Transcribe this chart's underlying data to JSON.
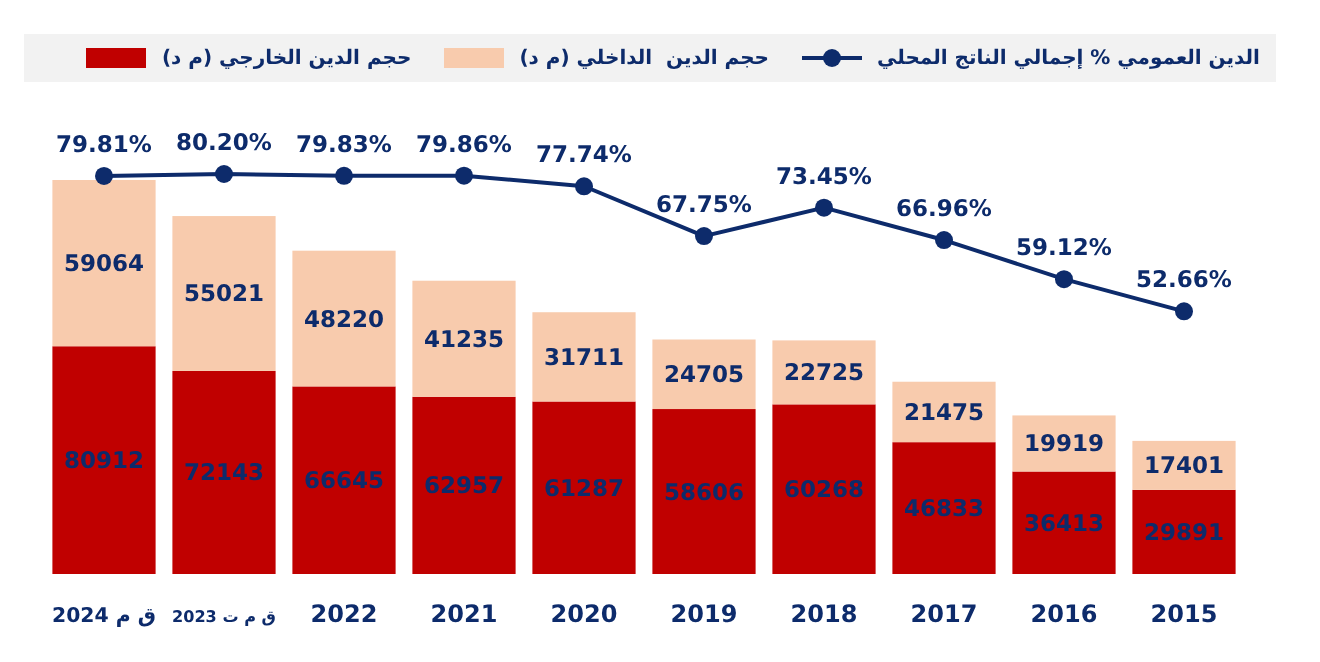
{
  "chart_data": {
    "type": "bar",
    "stacked": true,
    "categories": [
      "2024 ق م",
      "2023 ق م ت",
      "2022",
      "2021",
      "2020",
      "2019",
      "2018",
      "2017",
      "2016",
      "2015"
    ],
    "series": [
      {
        "name": "حجم الدين الخارجي (م د)",
        "color": "#c00000",
        "values": [
          80912,
          72143,
          66645,
          62957,
          61287,
          58606,
          60268,
          46833,
          36413,
          29891
        ]
      },
      {
        "name": "حجم الدين  الداخلي (م د)",
        "color": "#f8cbad",
        "values": [
          59064,
          55021,
          48220,
          41235,
          31711,
          24705,
          22725,
          21475,
          19919,
          17401
        ]
      },
      {
        "name": "الدين العمومي % إجمالي الناتج المحلي",
        "type": "line",
        "axis": "y2",
        "color": "#0d2b6b",
        "marker": "circle",
        "values": [
          79.81,
          80.2,
          79.83,
          79.86,
          77.74,
          67.75,
          73.45,
          66.96,
          59.12,
          52.66
        ],
        "value_labels": [
          "79.81%",
          "80.20%",
          "79.83%",
          "79.86%",
          "77.74%",
          "67.75%",
          "73.45%",
          "66.96%",
          "59.12%",
          "52.66%"
        ]
      }
    ],
    "data_labels": true,
    "legend": "top",
    "tick_labels": "x"
  }
}
